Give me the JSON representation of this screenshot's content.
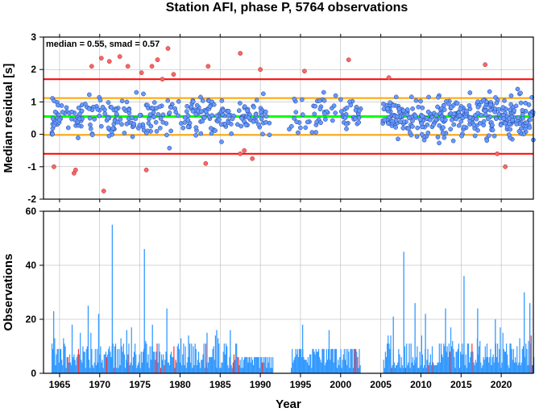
{
  "title": "Station AFI, phase P, 5764 observations",
  "chart_data": [
    {
      "type": "scatter",
      "ylabel": "Median residual [s]",
      "annotation": "median = 0.55, smad = 0.57",
      "xlim": [
        1963.0,
        2024.0
      ],
      "ylim": [
        -2,
        3
      ],
      "yticks": [
        "-2",
        "-1",
        "0",
        "1",
        "2",
        "3"
      ],
      "grid": true,
      "reference_lines": [
        {
          "value": 1.7,
          "color": "#ff0000"
        },
        {
          "value": 1.12,
          "color": "#ffa500"
        },
        {
          "value": 0.55,
          "color": "#00ff00"
        },
        {
          "value": -0.02,
          "color": "#ffa500"
        },
        {
          "value": -0.6,
          "color": "#ff0000"
        }
      ],
      "inlier_color": "#6699ff",
      "outlier_color": "#ff6666",
      "outliers": [
        [
          1964.3,
          -1.0
        ],
        [
          1966.8,
          -1.2
        ],
        [
          1967.0,
          -1.1
        ],
        [
          1970.5,
          -1.75
        ],
        [
          1975.8,
          -1.1
        ],
        [
          1983.2,
          -0.9
        ],
        [
          1987.5,
          -0.6
        ],
        [
          1988.0,
          -0.5
        ],
        [
          1989.0,
          -0.75
        ],
        [
          1969.0,
          2.1
        ],
        [
          1970.2,
          2.35
        ],
        [
          1971.2,
          2.25
        ],
        [
          1972.5,
          2.4
        ],
        [
          1973.5,
          2.1
        ],
        [
          1975.2,
          1.9
        ],
        [
          1976.5,
          2.1
        ],
        [
          1977.2,
          2.3
        ],
        [
          1978.5,
          2.65
        ],
        [
          1979.2,
          1.85
        ],
        [
          1983.5,
          2.1
        ],
        [
          1987.5,
          2.5
        ],
        [
          1990.0,
          2.0
        ],
        [
          1995.5,
          1.95
        ],
        [
          2001.0,
          2.3
        ],
        [
          2018.0,
          2.15
        ],
        [
          2006.0,
          1.75
        ],
        [
          2019.5,
          -0.6
        ],
        [
          2020.5,
          -1.0
        ],
        [
          1977.8,
          1.7
        ]
      ]
    },
    {
      "type": "bar",
      "xlabel": "Year",
      "ylabel": "Observations",
      "xlim": [
        1963.0,
        2024.0
      ],
      "ylim": [
        0,
        60
      ],
      "yticks": [
        "0",
        "20",
        "40",
        "60"
      ],
      "xticks": [
        "1965",
        "1970",
        "1975",
        "1980",
        "1985",
        "1990",
        "1995",
        "2000",
        "2005",
        "2010",
        "2015",
        "2020"
      ],
      "grid": true,
      "bar_color": "#3399ff",
      "highlight_color": "#ff3333",
      "peaks": [
        [
          1964.2,
          23
        ],
        [
          1966.5,
          18
        ],
        [
          1968.5,
          25
        ],
        [
          1969.8,
          22
        ],
        [
          1971.5,
          55
        ],
        [
          1973.3,
          16
        ],
        [
          1975.5,
          46
        ],
        [
          1976.5,
          18
        ],
        [
          1978.3,
          24
        ],
        [
          1981.0,
          14
        ],
        [
          1983.3,
          15
        ],
        [
          1984.5,
          16
        ],
        [
          1986.2,
          16
        ],
        [
          1995.2,
          18
        ],
        [
          1998.5,
          16
        ],
        [
          2006.5,
          21
        ],
        [
          2007.8,
          45
        ],
        [
          2009.2,
          26
        ],
        [
          2010.5,
          22
        ],
        [
          2013.0,
          24
        ],
        [
          2015.3,
          36
        ],
        [
          2017.0,
          24
        ],
        [
          2019.2,
          20
        ],
        [
          2022.8,
          30
        ],
        [
          2023.5,
          26
        ]
      ]
    }
  ]
}
